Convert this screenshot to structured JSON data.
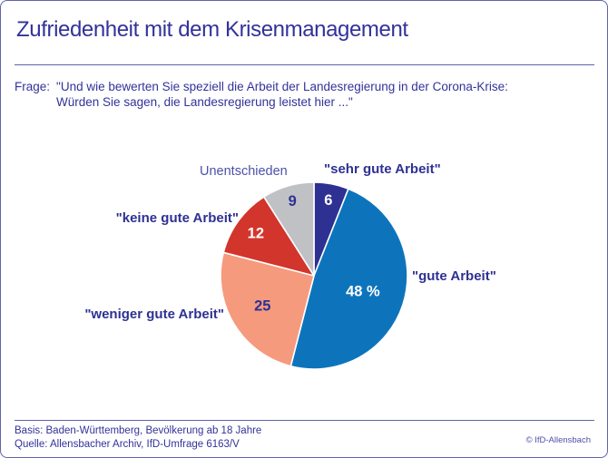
{
  "header": {
    "title": "Zufriedenheit mit dem Krisenmanagement"
  },
  "question": {
    "label": "Frage:",
    "line1": "\"Und wie bewerten Sie speziell die Arbeit der Landesregierung in der Corona-Krise:",
    "line2": "Würden Sie sagen, die Landesregierung leistet hier ...\""
  },
  "chart_data": {
    "type": "pie",
    "title": "Zufriedenheit mit dem Krisenmanagement",
    "unit": "percent",
    "start_angle": "12-o-clock, clockwise",
    "categories": [
      "\"sehr gute Arbeit\"",
      "\"gute Arbeit\"",
      "\"weniger gute Arbeit\"",
      "\"keine gute Arbeit\"",
      "Unentschieden"
    ],
    "values": [
      6,
      48,
      25,
      12,
      9
    ],
    "slices": [
      {
        "label": "\"sehr gute Arbeit\"",
        "value": 6,
        "value_label": "6",
        "color": "#2e3192",
        "value_label_color": "#ffffff"
      },
      {
        "label": "\"gute Arbeit\"",
        "value": 48,
        "value_label": "48 %",
        "color": "#0d74bc",
        "value_label_color": "#ffffff"
      },
      {
        "label": "\"weniger gute Arbeit\"",
        "value": 25,
        "value_label": "25",
        "color": "#f69a7d",
        "value_label_color": "#2e3192"
      },
      {
        "label": "\"keine gute Arbeit\"",
        "value": 12,
        "value_label": "12",
        "color": "#d2352c",
        "value_label_color": "#ffffff"
      },
      {
        "label": "Unentschieden",
        "value": 9,
        "value_label": "9",
        "color": "#bfc1c5",
        "value_label_color": "#2e3192"
      }
    ]
  },
  "footer": {
    "basis": "Basis: Baden-Württemberg, Bevölkerung ab 18 Jahre",
    "quelle": "Quelle: Allensbacher Archiv, IfD-Umfrage 6163/V",
    "copyright": "© IfD-Allensbach"
  },
  "colors": {
    "accent_text": "#32329a",
    "rule": "#6163ab",
    "slice_border": "#ffffff"
  }
}
